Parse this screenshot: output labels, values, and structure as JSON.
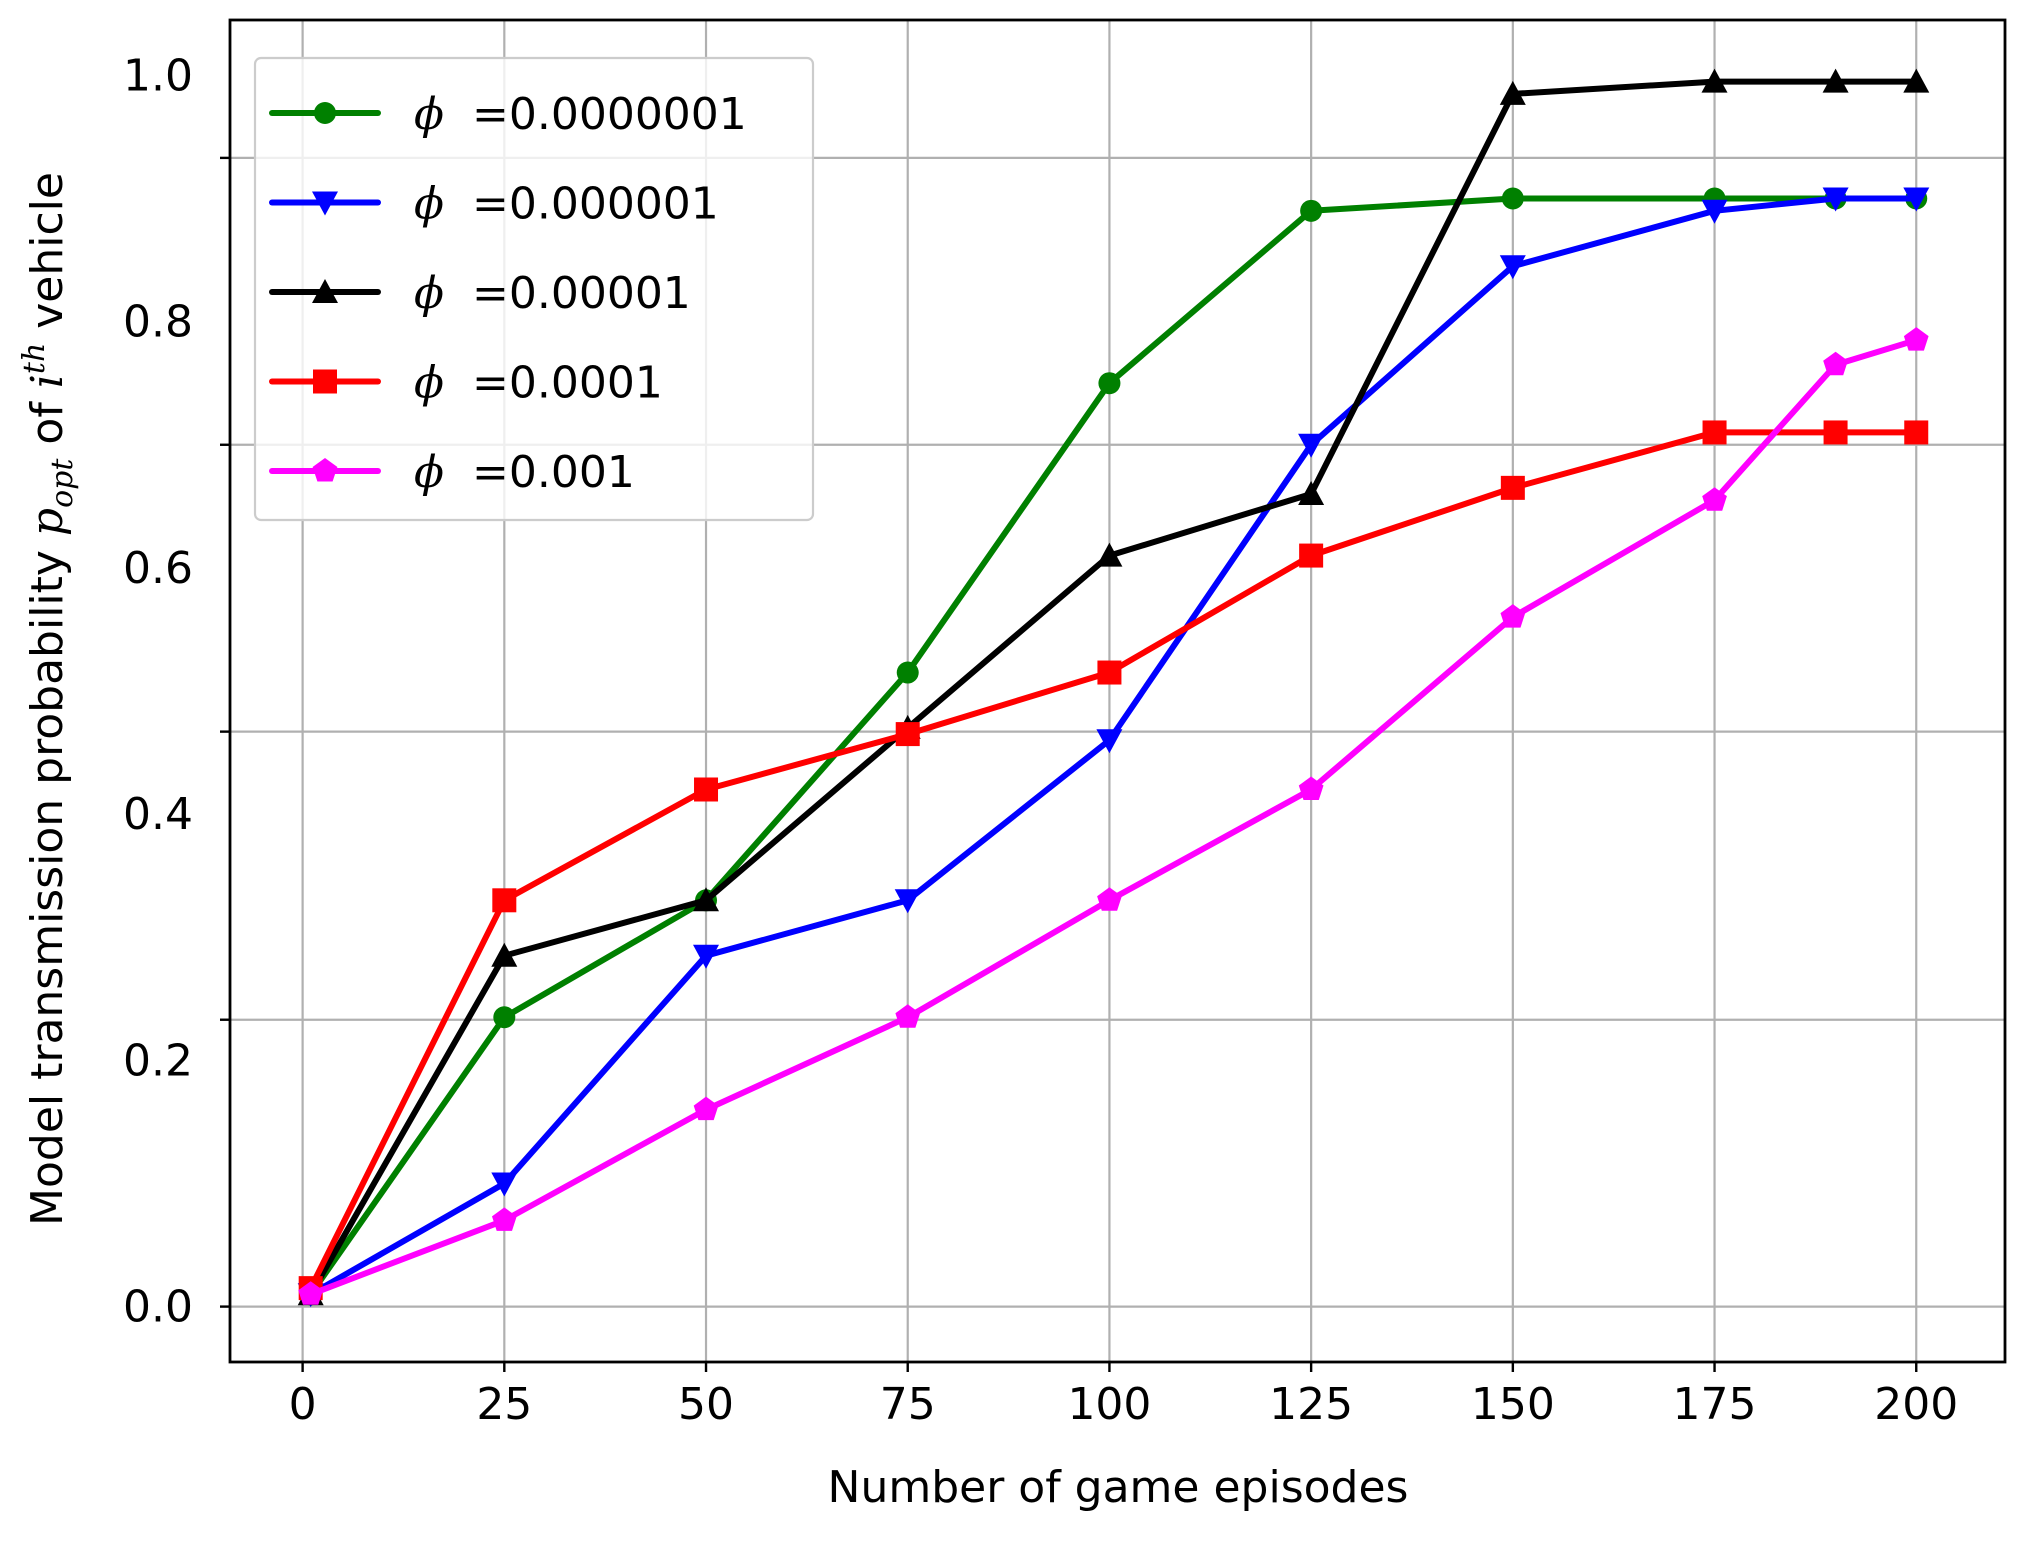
{
  "chart_data": {
    "type": "line",
    "xlabel": "Number of game episodes",
    "ylabel_main": "Model transmission probability ",
    "ylabel_p": "p",
    "ylabel_p_sub": "opt",
    "ylabel_of": " of ",
    "ylabel_i": "i",
    "ylabel_i_sup": "th",
    "ylabel_end": " vehicle",
    "xlim": [
      -9,
      211
    ],
    "ylim": [
      -0.045,
      1.045
    ],
    "x_ticks": [
      0,
      25,
      50,
      75,
      100,
      125,
      150,
      175,
      200
    ],
    "x_tick_labels": [
      "0",
      "25",
      "50",
      "75",
      "100",
      "125",
      "150",
      "175",
      "200"
    ],
    "y_ticks": [
      0.0,
      0.2,
      0.4,
      0.6,
      0.8,
      1.0
    ],
    "y_tick_labels": [
      "0.0",
      "0.2",
      "0.4",
      "0.6",
      "0.8",
      "1.0"
    ],
    "y_gridlines": [
      0.0,
      0.233,
      0.467,
      0.7,
      0.933
    ],
    "grid": true,
    "legend_position": "top-left",
    "x": [
      1,
      25,
      50,
      75,
      100,
      125,
      150,
      175,
      190,
      200
    ],
    "series": [
      {
        "name_symbol": "ϕ",
        "name_value": " =0.0000001",
        "color": "#008000",
        "marker": "circle",
        "values": [
          0.01,
          0.235,
          0.33,
          0.515,
          0.75,
          0.89,
          0.9,
          0.9,
          0.9,
          0.9
        ]
      },
      {
        "name_symbol": "ϕ",
        "name_value": " =0.000001",
        "color": "#0000ff",
        "marker": "triangle-down",
        "values": [
          0.01,
          0.1,
          0.285,
          0.33,
          0.46,
          0.7,
          0.845,
          0.89,
          0.9,
          0.9
        ]
      },
      {
        "name_symbol": "ϕ",
        "name_value": " =0.00001",
        "color": "#000000",
        "marker": "triangle-up",
        "values": [
          0.01,
          0.285,
          0.33,
          0.47,
          0.61,
          0.66,
          0.985,
          0.995,
          0.995,
          0.995
        ]
      },
      {
        "name_symbol": "ϕ",
        "name_value": " =0.0001",
        "color": "#ff0000",
        "marker": "square",
        "values": [
          0.015,
          0.33,
          0.42,
          0.465,
          0.515,
          0.61,
          0.665,
          0.71,
          0.71,
          0.71
        ]
      },
      {
        "name_symbol": "ϕ",
        "name_value": " =0.001",
        "color": "#ff00ff",
        "marker": "pentagon",
        "values": [
          0.01,
          0.07,
          0.16,
          0.235,
          0.33,
          0.42,
          0.56,
          0.655,
          0.765,
          0.785
        ]
      }
    ]
  }
}
